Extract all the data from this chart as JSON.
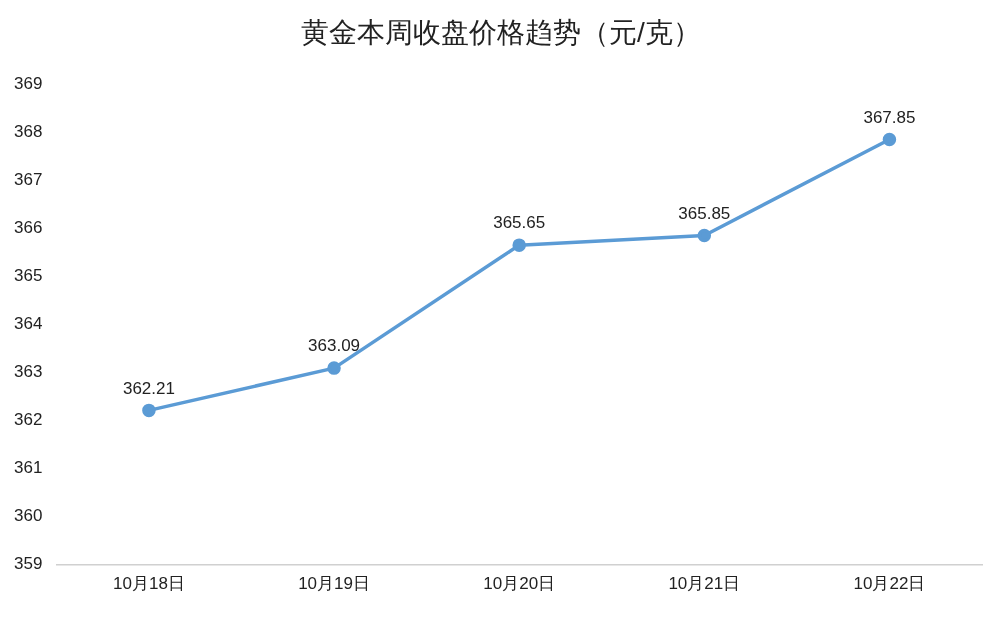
{
  "chart_data": {
    "type": "line",
    "title": "黄金本周收盘价格趋势（元/克）",
    "categories": [
      "10月18日",
      "10月19日",
      "10月20日",
      "10月21日",
      "10月22日"
    ],
    "series": [
      {
        "color": "#5b9bd5",
        "values": [
          362.21,
          363.09,
          365.65,
          365.85,
          367.85
        ]
      }
    ],
    "ylim": [
      359,
      369
    ],
    "yticks": [
      359,
      360,
      361,
      362,
      363,
      364,
      365,
      366,
      367,
      368,
      369
    ],
    "grid": false,
    "legend": false,
    "marker": "circle",
    "line_style": "solid",
    "data_labels": true
  }
}
